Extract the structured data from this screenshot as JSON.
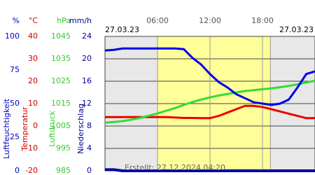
{
  "chart_data": {
    "type": "line",
    "date_left": "27.03.23",
    "date_right": "27.03.23",
    "created": "Erstellt: 27.12.2024 04:20",
    "x": [
      0,
      1,
      2,
      3,
      4,
      5,
      6,
      7,
      8,
      9,
      10,
      11,
      12,
      13,
      14,
      15,
      16,
      17,
      18,
      19,
      20,
      21,
      22,
      23,
      24
    ],
    "xlim": [
      0,
      24
    ],
    "xticks": [
      {
        "value": 6,
        "label": "06:00"
      },
      {
        "value": 12,
        "label": "12:00"
      },
      {
        "value": 18,
        "label": "18:00"
      }
    ],
    "daylight": [
      6,
      18.9
    ],
    "grid": true,
    "series": [
      {
        "name": "Luftfeuchtigkeit",
        "unit": "%",
        "color": "#0000ee",
        "label_color": "#0000cc",
        "ylim": [
          0,
          100
        ],
        "yticks": [
          0,
          25,
          50,
          75,
          100
        ],
        "values": [
          89.5,
          90,
          91,
          91,
          91,
          91,
          91,
          91,
          91,
          90.5,
          84,
          79,
          72,
          66,
          62,
          57,
          54,
          51,
          50,
          49,
          50,
          53,
          62,
          72,
          74
        ]
      },
      {
        "name": "Temperatur",
        "unit": "°C",
        "color": "#ee0000",
        "label_color": "#cc0000",
        "ylim": [
          -20,
          40
        ],
        "yticks": [
          -20,
          -10,
          0,
          10,
          20,
          30,
          40
        ],
        "values": [
          4,
          4,
          4,
          4,
          4,
          4,
          4,
          4,
          3.8,
          3.6,
          3.6,
          3.5,
          3.5,
          4.5,
          6,
          7.5,
          9,
          9,
          8.5,
          7.5,
          6.5,
          5.5,
          4.5,
          3.5,
          3.5
        ]
      },
      {
        "name": "Luftdruck",
        "unit": "hPa",
        "color": "#33dd33",
        "label_color": "#33cc33",
        "ylim": [
          985,
          1045
        ],
        "yticks": [
          985,
          995,
          1005,
          1015,
          1025,
          1035,
          1045
        ],
        "values": [
          1006.5,
          1006.8,
          1007.2,
          1007.8,
          1008.6,
          1009.6,
          1010.6,
          1011.8,
          1013,
          1014.4,
          1015.7,
          1016.8,
          1017.8,
          1018.6,
          1019.3,
          1020,
          1020.6,
          1021,
          1021.4,
          1021.8,
          1022.3,
          1022.9,
          1023.6,
          1024.4,
          1025.2
        ]
      },
      {
        "name": "Niederschlag",
        "unit": "mm/h",
        "color": "#0000aa",
        "label_color": "#000099",
        "ylim": [
          0,
          24
        ],
        "yticks": [
          0,
          4,
          8,
          12,
          16,
          20,
          24
        ],
        "values": [
          0.2,
          0.2,
          0,
          0,
          0,
          0,
          0,
          0,
          0,
          0,
          0,
          0,
          0,
          0,
          0,
          0,
          0,
          0,
          0,
          0,
          0,
          0,
          0,
          0,
          0
        ]
      }
    ]
  }
}
